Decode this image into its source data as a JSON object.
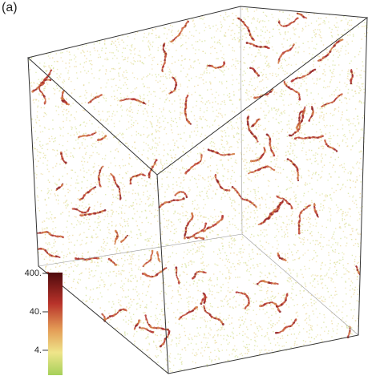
{
  "panel_label": "(a)",
  "colorbar": {
    "scale": "log",
    "lim": [
      0.9,
      420
    ],
    "ticks": [
      {
        "value": 400,
        "label": "400."
      },
      {
        "value": 40,
        "label": "40."
      },
      {
        "value": 4,
        "label": "4."
      }
    ]
  }
}
